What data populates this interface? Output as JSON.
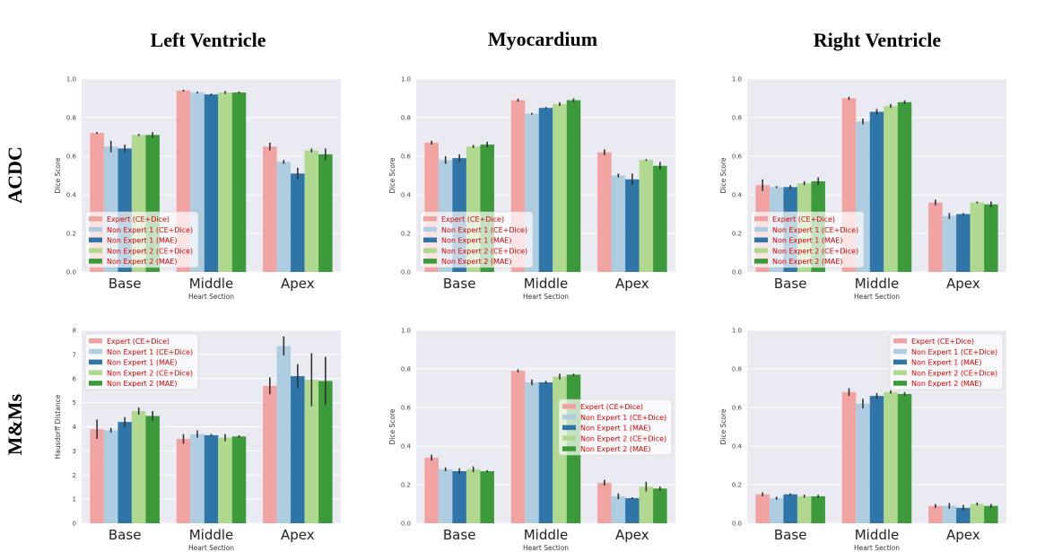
{
  "column_titles": [
    "Left Ventricle",
    "Myocardium",
    "Right Ventricle"
  ],
  "row_titles": [
    "ACDC",
    "M&Ms"
  ],
  "colors": {
    "expert": "#f1a3a2",
    "ne1_cedice": "#aecde0",
    "ne1_mae": "#2f75a8",
    "ne2_cedice": "#b1d88f",
    "ne2_mae": "#3c9a3a",
    "plot_bg": "#eaeaf2",
    "legend_text": "#e00000"
  },
  "chart_data": [
    {
      "type": "bar",
      "id": "acdc-lv",
      "row": 0,
      "col": 0,
      "categories": [
        "Base",
        "Middle",
        "Apex"
      ],
      "xlabel": "Heart Section",
      "ylabel": "Dice Score",
      "ylim": [
        0,
        1.0
      ],
      "yticks": [
        "0.0",
        "0.2",
        "0.4",
        "0.6",
        "0.8",
        "1.0"
      ],
      "legend_position": "lower-left",
      "series": [
        {
          "name": "Expert (CE+Dice)",
          "values": [
            0.72,
            0.94,
            0.65
          ],
          "err": [
            0.005,
            0.005,
            0.02
          ]
        },
        {
          "name": "Non Expert 1 (CE+Dice)",
          "values": [
            0.65,
            0.93,
            0.57
          ],
          "err": [
            0.03,
            0.005,
            0.01
          ]
        },
        {
          "name": "Non Expert 1 (MAE)",
          "values": [
            0.64,
            0.92,
            0.51
          ],
          "err": [
            0.02,
            0.005,
            0.03
          ]
        },
        {
          "name": "Non Expert 2 (CE+Dice)",
          "values": [
            0.71,
            0.93,
            0.63
          ],
          "err": [
            0.005,
            0.008,
            0.01
          ]
        },
        {
          "name": "Non Expert 2 (MAE)",
          "values": [
            0.71,
            0.93,
            0.61
          ],
          "err": [
            0.015,
            0.005,
            0.03
          ]
        }
      ]
    },
    {
      "type": "bar",
      "id": "acdc-myo",
      "row": 0,
      "col": 1,
      "categories": [
        "Base",
        "Middle",
        "Apex"
      ],
      "xlabel": "Heart Section",
      "ylabel": "Dice Score",
      "ylim": [
        0,
        1.0
      ],
      "yticks": [
        "0.0",
        "0.2",
        "0.4",
        "0.6",
        "0.8",
        "1.0"
      ],
      "legend_position": "lower-left",
      "series": [
        {
          "name": "Expert (CE+Dice)",
          "values": [
            0.67,
            0.89,
            0.62
          ],
          "err": [
            0.01,
            0.008,
            0.015
          ]
        },
        {
          "name": "Non Expert 1 (CE+Dice)",
          "values": [
            0.58,
            0.82,
            0.5
          ],
          "err": [
            0.02,
            0.005,
            0.01
          ]
        },
        {
          "name": "Non Expert 1 (MAE)",
          "values": [
            0.59,
            0.85,
            0.48
          ],
          "err": [
            0.02,
            0.005,
            0.03
          ]
        },
        {
          "name": "Non Expert 2 (CE+Dice)",
          "values": [
            0.65,
            0.87,
            0.58
          ],
          "err": [
            0.008,
            0.01,
            0.005
          ]
        },
        {
          "name": "Non Expert 2 (MAE)",
          "values": [
            0.66,
            0.89,
            0.55
          ],
          "err": [
            0.015,
            0.01,
            0.02
          ]
        }
      ]
    },
    {
      "type": "bar",
      "id": "acdc-rv",
      "row": 0,
      "col": 2,
      "categories": [
        "Base",
        "Middle",
        "Apex"
      ],
      "xlabel": "Heart Section",
      "ylabel": "Dice Score",
      "ylim": [
        0,
        1.0
      ],
      "yticks": [
        "0.0",
        "0.2",
        "0.4",
        "0.6",
        "0.8",
        "1.0"
      ],
      "legend_position": "lower-left",
      "series": [
        {
          "name": "Expert (CE+Dice)",
          "values": [
            0.45,
            0.9,
            0.36
          ],
          "err": [
            0.03,
            0.008,
            0.015
          ]
        },
        {
          "name": "Non Expert 1 (CE+Dice)",
          "values": [
            0.44,
            0.78,
            0.29
          ],
          "err": [
            0.005,
            0.015,
            0.015
          ]
        },
        {
          "name": "Non Expert 1 (MAE)",
          "values": [
            0.44,
            0.83,
            0.3
          ],
          "err": [
            0.01,
            0.015,
            0.005
          ]
        },
        {
          "name": "Non Expert 2 (CE+Dice)",
          "values": [
            0.46,
            0.86,
            0.36
          ],
          "err": [
            0.01,
            0.01,
            0.005
          ]
        },
        {
          "name": "Non Expert 2 (MAE)",
          "values": [
            0.47,
            0.88,
            0.35
          ],
          "err": [
            0.02,
            0.01,
            0.015
          ]
        }
      ]
    },
    {
      "type": "bar",
      "id": "mnms-lv",
      "row": 1,
      "col": 0,
      "categories": [
        "Base",
        "Middle",
        "Apex"
      ],
      "xlabel": "Heart Section",
      "ylabel": "Hausdorff Distance",
      "ylim": [
        0,
        8
      ],
      "yticks": [
        "0",
        "1",
        "2",
        "3",
        "4",
        "5",
        "6",
        "7",
        "8"
      ],
      "legend_position": "upper-left",
      "series": [
        {
          "name": "Expert (CE+Dice)",
          "values": [
            3.9,
            3.5,
            5.7
          ],
          "err": [
            0.4,
            0.2,
            0.35
          ]
        },
        {
          "name": "Non Expert 1 (CE+Dice)",
          "values": [
            3.85,
            3.7,
            7.35
          ],
          "err": [
            0.1,
            0.15,
            0.4
          ]
        },
        {
          "name": "Non Expert 1 (MAE)",
          "values": [
            4.2,
            3.65,
            6.1
          ],
          "err": [
            0.2,
            0.05,
            0.5
          ]
        },
        {
          "name": "Non Expert 2 (CE+Dice)",
          "values": [
            4.65,
            3.55,
            5.95
          ],
          "err": [
            0.15,
            0.15,
            1.1
          ]
        },
        {
          "name": "Non Expert 2 (MAE)",
          "values": [
            4.45,
            3.6,
            5.9
          ],
          "err": [
            0.2,
            0.05,
            1.0
          ]
        }
      ]
    },
    {
      "type": "bar",
      "id": "mnms-myo",
      "row": 1,
      "col": 1,
      "categories": [
        "Base",
        "Middle",
        "Apex"
      ],
      "xlabel": "Heart Section",
      "ylabel": "Dice Score",
      "ylim": [
        0,
        1.0
      ],
      "yticks": [
        "0.0",
        "0.2",
        "0.4",
        "0.6",
        "0.8",
        "1.0"
      ],
      "legend_position": "center-right",
      "legend_labels_override": [
        "Expert (CE+Dice)",
        "Non Expert 1 (CE+Dice)",
        "Non Expert 1 (MAE)",
        "Non Expert 2 (CE+Dice)",
        "Non Expert 2 (MAE)"
      ],
      "series": [
        {
          "name": "Expert (CE+Dice)",
          "values": [
            0.34,
            0.79,
            0.21
          ],
          "err": [
            0.015,
            0.008,
            0.015
          ]
        },
        {
          "name": "Non Expert 1 (CE+Dice)",
          "values": [
            0.28,
            0.73,
            0.14
          ],
          "err": [
            0.01,
            0.015,
            0.015
          ]
        },
        {
          "name": "Non Expert 1 (MAE)",
          "values": [
            0.27,
            0.73,
            0.13
          ],
          "err": [
            0.015,
            0.008,
            0.005
          ]
        },
        {
          "name": "Non Expert 2 (CE+Dice)",
          "values": [
            0.28,
            0.76,
            0.19
          ],
          "err": [
            0.015,
            0.015,
            0.025
          ]
        },
        {
          "name": "Non Expert 2 (MAE)",
          "values": [
            0.27,
            0.77,
            0.18
          ],
          "err": [
            0.005,
            0.005,
            0.01
          ]
        }
      ]
    },
    {
      "type": "bar",
      "id": "mnms-rv",
      "row": 1,
      "col": 2,
      "categories": [
        "Base",
        "Middle",
        "Apex"
      ],
      "xlabel": "Heart Section",
      "ylabel": "Dice Score",
      "ylim": [
        0,
        1.0
      ],
      "yticks": [
        "0.0",
        "0.2",
        "0.4",
        "0.6",
        "0.8",
        "1.0"
      ],
      "legend_position": "upper-right",
      "series": [
        {
          "name": "Expert (CE+Dice)",
          "values": [
            0.15,
            0.68,
            0.09
          ],
          "err": [
            0.01,
            0.02,
            0.01
          ]
        },
        {
          "name": "Non Expert 1 (CE+Dice)",
          "values": [
            0.13,
            0.62,
            0.09
          ],
          "err": [
            0.008,
            0.025,
            0.015
          ]
        },
        {
          "name": "Non Expert 1 (MAE)",
          "values": [
            0.15,
            0.66,
            0.08
          ],
          "err": [
            0.005,
            0.015,
            0.015
          ]
        },
        {
          "name": "Non Expert 2 (CE+Dice)",
          "values": [
            0.14,
            0.68,
            0.1
          ],
          "err": [
            0.008,
            0.008,
            0.008
          ]
        },
        {
          "name": "Non Expert 2 (MAE)",
          "values": [
            0.14,
            0.67,
            0.09
          ],
          "err": [
            0.008,
            0.01,
            0.01
          ]
        }
      ]
    }
  ]
}
